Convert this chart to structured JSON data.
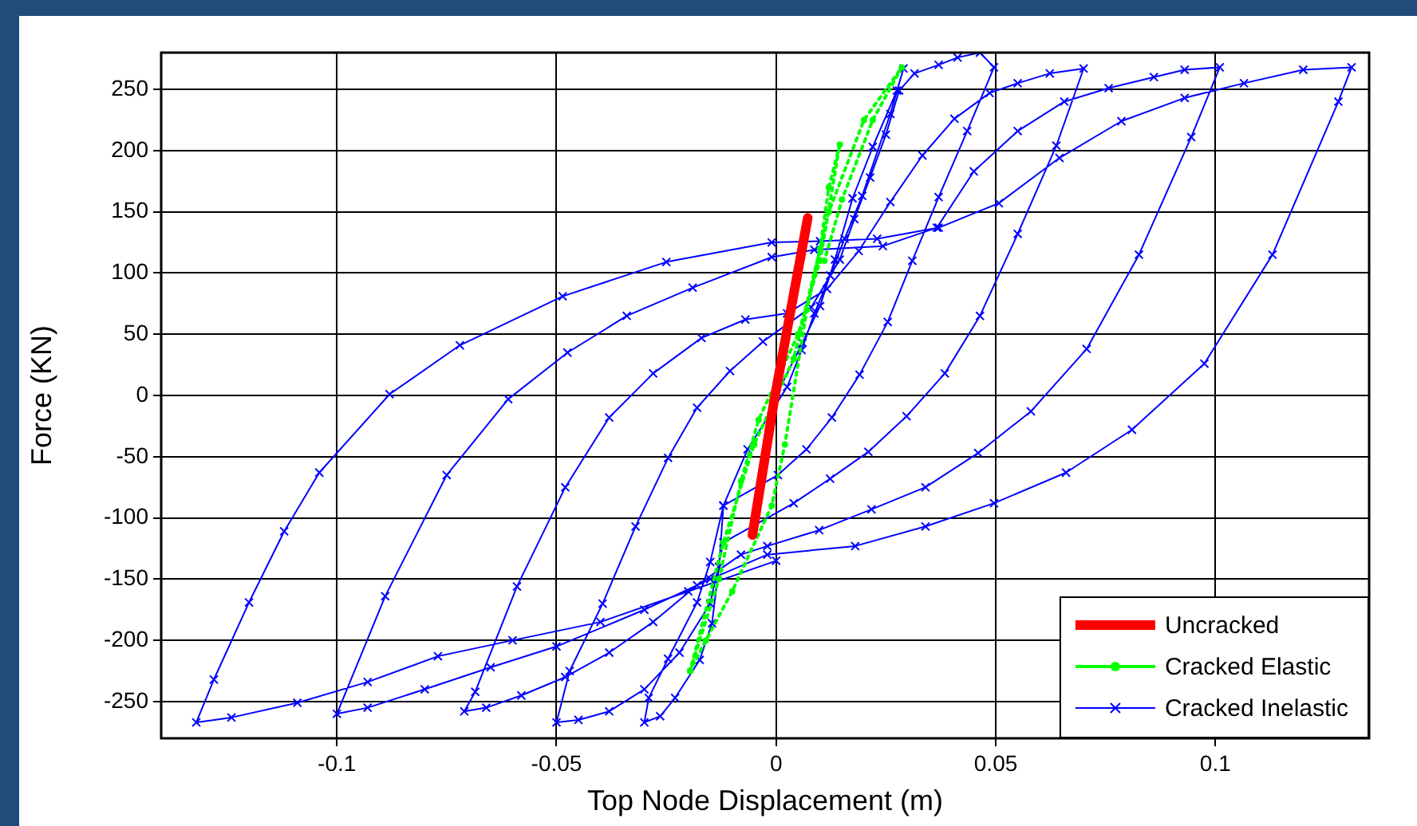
{
  "chart_data": {
    "type": "line",
    "xlabel": "Top Node Displacement (m)",
    "ylabel": "Force (KN)",
    "xlim": [
      -0.14,
      0.135
    ],
    "ylim": [
      -280,
      280
    ],
    "xticks": [
      -0.1,
      -0.05,
      0,
      0.05,
      0.1
    ],
    "yticks": [
      -250,
      -200,
      -150,
      -100,
      -50,
      0,
      50,
      100,
      150,
      200,
      250
    ],
    "grid": true,
    "legend": "bottom right",
    "series": [
      {
        "name": "Uncracked",
        "color": "#ff0000",
        "marker": "none",
        "line_style": "solid",
        "x": [
          -0.0054,
          -0.0004,
          0.0072
        ],
        "values": [
          -114,
          -3,
          145
        ]
      },
      {
        "name": "Cracked Elastic",
        "color": "#00ff00",
        "marker": "circle",
        "line_style": "dotted",
        "x": [
          -0.0196,
          -0.013,
          -0.008,
          -0.004,
          0.005,
          0.01,
          0.0145,
          0.012,
          0.01,
          0.007,
          0.002,
          -0.001,
          -0.01,
          -0.016,
          -0.0196,
          -0.012,
          -0.005,
          0.004,
          0.012,
          0.02,
          0.0286,
          0.022,
          0.015,
          0.011
        ],
        "values": [
          -225,
          -150,
          -70,
          -20,
          50,
          110,
          205,
          170,
          120,
          70,
          -40,
          -90,
          -160,
          -200,
          -225,
          -120,
          -40,
          30,
          150,
          225,
          268,
          225,
          160,
          110
        ]
      },
      {
        "name": "Cracked Inelastic",
        "color": "#0000ff",
        "marker": "cross",
        "line_style": "solid",
        "x": [
          0,
          0.006,
          0.01,
          0.0134,
          0.0174,
          0.022,
          0.0275,
          0.029,
          0.026,
          0.0196,
          0.0156,
          0.0123,
          0.0087,
          0.0058,
          0.0025,
          -0.0065,
          -0.012,
          -0.015,
          -0.018,
          -0.0246,
          -0.029,
          -0.03,
          -0.0264,
          -0.023,
          -0.0174,
          -0.0146,
          -0.013,
          -0.012,
          0.0004,
          0.0069,
          0.0127,
          0.019,
          0.0254,
          0.031,
          0.037,
          0.0435,
          0.0496,
          0.0464,
          0.0413,
          0.037,
          0.0315,
          0.028,
          0.025,
          0.0214,
          0.0178,
          0.0145,
          0.008,
          -0.003,
          -0.0105,
          -0.018,
          -0.0246,
          -0.032,
          -0.0395,
          -0.047,
          -0.05,
          -0.045,
          -0.038,
          -0.03,
          -0.022,
          -0.015,
          -0.012,
          0.004,
          0.0123,
          0.021,
          0.0297,
          0.0384,
          0.0464,
          0.055,
          0.0638,
          0.07,
          0.0623,
          0.055,
          0.0486,
          0.0406,
          0.0333,
          0.026,
          0.0188,
          0.0116,
          0.0025,
          -0.007,
          -0.017,
          -0.028,
          -0.038,
          -0.048,
          -0.059,
          -0.0685,
          -0.071,
          -0.066,
          -0.058,
          -0.048,
          -0.038,
          -0.028,
          -0.018,
          -0.008,
          -0.002,
          0.0098,
          0.0217,
          0.034,
          0.046,
          0.058,
          0.0707,
          0.0826,
          0.0945,
          0.101,
          0.093,
          0.086,
          0.0757,
          0.0656,
          0.055,
          0.045,
          0.0366,
          0.0243,
          0.0087,
          -0.001,
          -0.019,
          -0.034,
          -0.0475,
          -0.061,
          -0.075,
          -0.089,
          -0.1,
          -0.093,
          -0.08,
          -0.065,
          -0.05,
          -0.03,
          -0.015,
          -0.002,
          0.018,
          0.034,
          0.0496,
          0.066,
          0.081,
          0.0975,
          0.113,
          0.128,
          0.131,
          0.12,
          0.1065,
          0.093,
          0.0786,
          0.0645,
          0.0507,
          0.037,
          0.023,
          0.01,
          -0.001,
          -0.025,
          -0.0486,
          -0.072,
          -0.088,
          -0.104,
          -0.112,
          -0.12,
          -0.128,
          -0.132,
          -0.124,
          -0.109,
          -0.093,
          -0.077,
          -0.06,
          -0.04,
          -0.02,
          0
        ],
        "values": [
          0,
          43,
          73,
          111,
          161,
          203,
          249,
          267,
          230,
          163,
          128,
          98,
          67,
          37,
          7,
          -44,
          -90,
          -136,
          -169,
          -215,
          -247,
          -267,
          -262,
          -247,
          -216,
          -186,
          -140,
          -90,
          -65,
          -44,
          -18,
          17,
          60,
          110,
          162,
          216,
          268,
          280,
          276,
          270,
          263,
          249,
          213,
          178,
          144,
          111,
          72,
          44,
          20,
          -10,
          -51,
          -107,
          -170,
          -225,
          -267,
          -265,
          -258,
          -240,
          -210,
          -170,
          -120,
          -88,
          -68,
          -46,
          -17,
          18,
          65,
          132,
          204,
          267,
          263,
          255,
          247,
          226,
          196,
          158,
          118,
          87,
          67,
          62,
          47,
          18,
          -18,
          -75,
          -156,
          -242,
          -258,
          -255,
          -245,
          -230,
          -210,
          -185,
          -155,
          -130,
          -123,
          -110,
          -93,
          -75,
          -47,
          -13,
          38,
          115,
          211,
          268,
          266,
          260,
          251,
          240,
          216,
          183,
          137,
          122,
          119,
          113,
          88,
          65,
          35,
          -3,
          -65,
          -164,
          -260,
          -255,
          -240,
          -222,
          -205,
          -175,
          -150,
          -130,
          -123,
          -107,
          -88,
          -63,
          -28,
          26,
          115,
          240,
          268,
          266,
          255,
          243,
          224,
          194,
          157,
          137,
          128,
          126,
          125,
          109,
          81,
          41,
          1,
          -63,
          -111,
          -169,
          -232,
          -267,
          -263,
          -251,
          -234,
          -213,
          -200,
          -185,
          -160,
          -135
        ]
      }
    ]
  }
}
